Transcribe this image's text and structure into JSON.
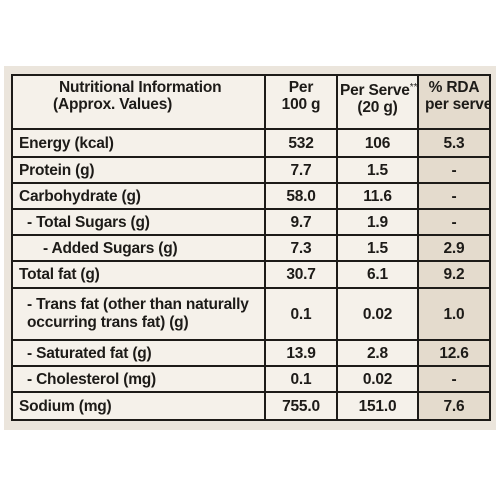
{
  "table": {
    "headers": {
      "nutrition_line1": "Nutritional Information",
      "nutrition_line2": "(Approx. Values)",
      "per100_line1": "Per",
      "per100_line2": "100 g",
      "perserve_line1": "Per Serve",
      "perserve_mark": "**",
      "perserve_line2": "(20 g)",
      "rda_line1": "% RDA",
      "rda_line2": "per serve"
    },
    "rows": [
      {
        "label": "Energy (kcal)",
        "per100": "532",
        "perserve": "106",
        "rda": "5.3"
      },
      {
        "label": "Protein (g)",
        "per100": "7.7",
        "perserve": "1.5",
        "rda": "-"
      },
      {
        "label": "Carbohydrate (g)",
        "per100": "58.0",
        "perserve": "11.6",
        "rda": "-"
      },
      {
        "label": "- Total Sugars (g)",
        "per100": "9.7",
        "perserve": "1.9",
        "rda": "-"
      },
      {
        "label": "- Added Sugars (g)",
        "per100": "7.3",
        "perserve": "1.5",
        "rda": "2.9"
      },
      {
        "label": "Total fat (g)",
        "per100": "30.7",
        "perserve": "6.1",
        "rda": "9.2"
      },
      {
        "label": "- Trans fat (other than naturally occurring trans fat) (g)",
        "per100": "0.1",
        "perserve": "0.02",
        "rda": "1.0"
      },
      {
        "label": "- Saturated fat (g)",
        "per100": "13.9",
        "perserve": "2.8",
        "rda": "12.6"
      },
      {
        "label": "- Cholesterol (mg)",
        "per100": "0.1",
        "perserve": "0.02",
        "rda": "-"
      },
      {
        "label": "Sodium (mg)",
        "per100": "755.0",
        "perserve": "151.0",
        "rda": "7.6"
      }
    ]
  }
}
